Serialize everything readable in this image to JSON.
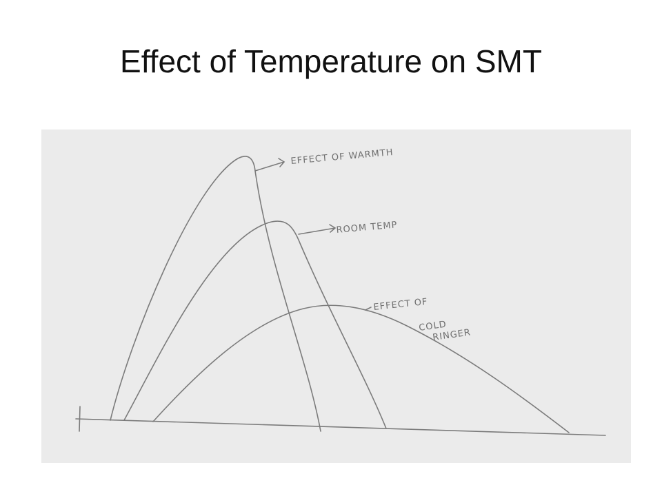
{
  "header": {
    "title": "Effect of Temperature on SMT"
  },
  "diagram": {
    "labels": [
      "EFFECT OF WARMTH",
      "ROOM TEMP",
      "EFFECT OF",
      "COLD",
      "RINGER"
    ]
  }
}
